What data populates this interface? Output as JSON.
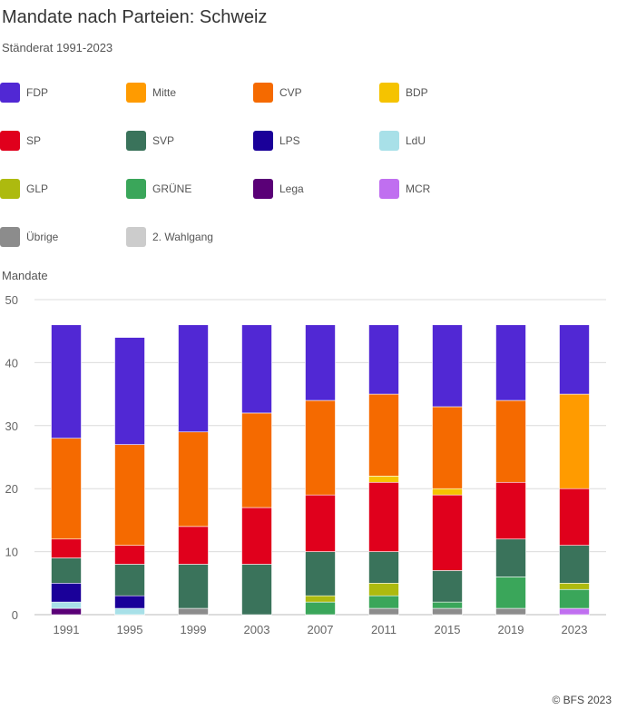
{
  "title": "Mandate nach Parteien: Schweiz",
  "subtitle": "Ständerat 1991-2023",
  "copyright": "© BFS 2023",
  "chart_data": {
    "type": "bar",
    "stacked": true,
    "title": "Mandate nach Parteien: Schweiz",
    "subtitle": "Ständerat 1991-2023",
    "ylabel": "Mandate",
    "xlabel": "",
    "ylim": [
      0,
      50
    ],
    "yticks": [
      0,
      10,
      20,
      30,
      40,
      50
    ],
    "categories": [
      "1991",
      "1995",
      "1999",
      "2003",
      "2007",
      "2011",
      "2015",
      "2019",
      "2023"
    ],
    "series": [
      {
        "name": "FDP",
        "color": "#5128d4",
        "values": [
          18,
          17,
          17,
          14,
          12,
          11,
          13,
          12,
          11
        ]
      },
      {
        "name": "Mitte",
        "color": "#ff9b00",
        "values": [
          0,
          0,
          0,
          0,
          0,
          0,
          0,
          0,
          15
        ]
      },
      {
        "name": "CVP",
        "color": "#f56a00",
        "values": [
          16,
          16,
          15,
          15,
          15,
          13,
          13,
          13,
          0
        ]
      },
      {
        "name": "BDP",
        "color": "#f5c300",
        "values": [
          0,
          0,
          0,
          0,
          0,
          1,
          1,
          0,
          0
        ]
      },
      {
        "name": "SP",
        "color": "#e0001c",
        "values": [
          3,
          3,
          6,
          9,
          9,
          11,
          12,
          9,
          9
        ]
      },
      {
        "name": "SVP",
        "color": "#3a735b",
        "values": [
          4,
          5,
          7,
          8,
          7,
          5,
          5,
          6,
          6
        ]
      },
      {
        "name": "LPS",
        "color": "#1a0099",
        "values": [
          3,
          2,
          0,
          0,
          0,
          0,
          0,
          0,
          0
        ]
      },
      {
        "name": "LdU",
        "color": "#a8e0e8",
        "values": [
          1,
          1,
          0,
          0,
          0,
          0,
          0,
          0,
          0
        ]
      },
      {
        "name": "GLP",
        "color": "#adba0f",
        "values": [
          0,
          0,
          0,
          0,
          1,
          2,
          0,
          0,
          1
        ]
      },
      {
        "name": "GRÜNE",
        "color": "#3aa65a",
        "values": [
          0,
          0,
          0,
          0,
          2,
          2,
          1,
          5,
          3
        ]
      },
      {
        "name": "Lega",
        "color": "#5a0077",
        "values": [
          1,
          0,
          0,
          0,
          0,
          0,
          0,
          0,
          0
        ]
      },
      {
        "name": "MCR",
        "color": "#c06ff0",
        "values": [
          0,
          0,
          0,
          0,
          0,
          0,
          0,
          0,
          1
        ]
      },
      {
        "name": "Übrige",
        "color": "#8c8c8c",
        "values": [
          0,
          0,
          1,
          0,
          0,
          1,
          1,
          1,
          0
        ]
      },
      {
        "name": "2. Wahlgang",
        "color": "#cccccc",
        "values": [
          0,
          0,
          0,
          0,
          0,
          0,
          0,
          0,
          0
        ]
      }
    ]
  }
}
